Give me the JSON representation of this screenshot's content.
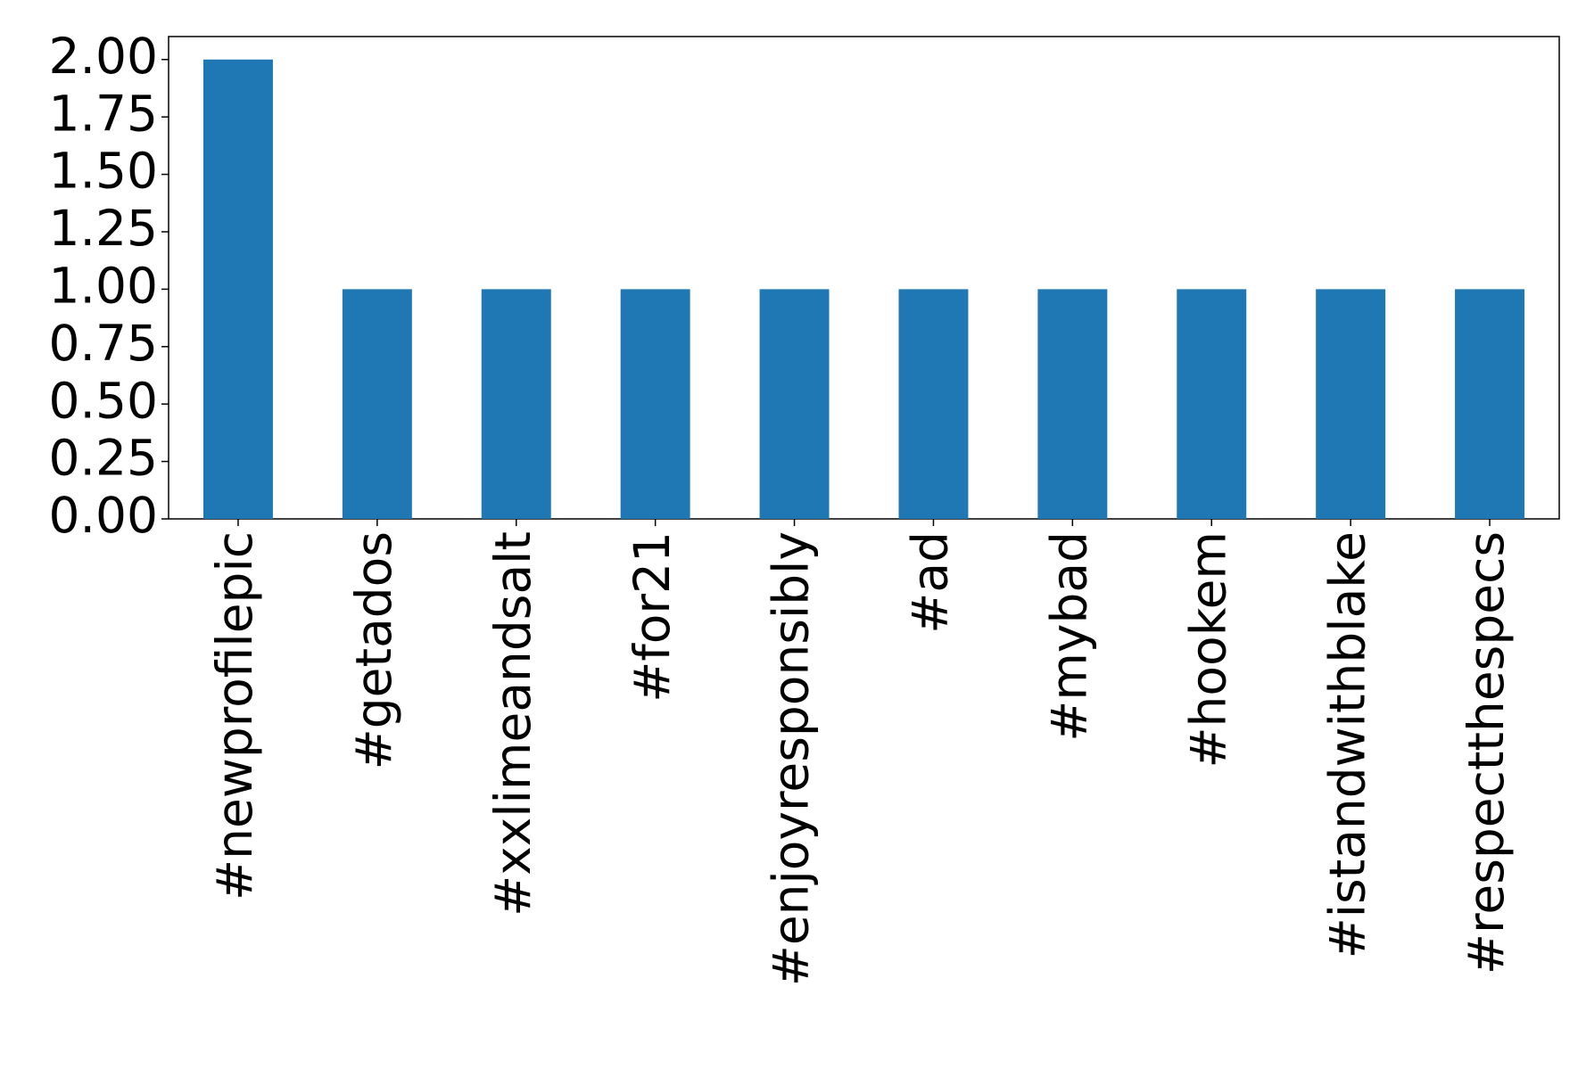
{
  "chart_data": {
    "type": "bar",
    "categories": [
      "#newprofilepic",
      "#getados",
      "#xxlimeandsalt",
      "#for21",
      "#enjoyresponsibly",
      "#ad",
      "#mybad",
      "#hookem",
      "#istandwithblake",
      "#respectthespecs"
    ],
    "values": [
      2,
      1,
      1,
      1,
      1,
      1,
      1,
      1,
      1,
      1
    ],
    "color": "#1f77b4",
    "ylim": [
      0,
      2.1
    ],
    "yticks": [
      {
        "value": 0,
        "label": "0.00"
      },
      {
        "value": 0.25,
        "label": "0.25"
      },
      {
        "value": 0.5,
        "label": "0.50"
      },
      {
        "value": 0.75,
        "label": "0.75"
      },
      {
        "value": 1,
        "label": "1.00"
      },
      {
        "value": 1.25,
        "label": "1.25"
      },
      {
        "value": 1.5,
        "label": "1.50"
      },
      {
        "value": 1.75,
        "label": "1.75"
      },
      {
        "value": 2,
        "label": "2.00"
      }
    ],
    "grid": false
  }
}
